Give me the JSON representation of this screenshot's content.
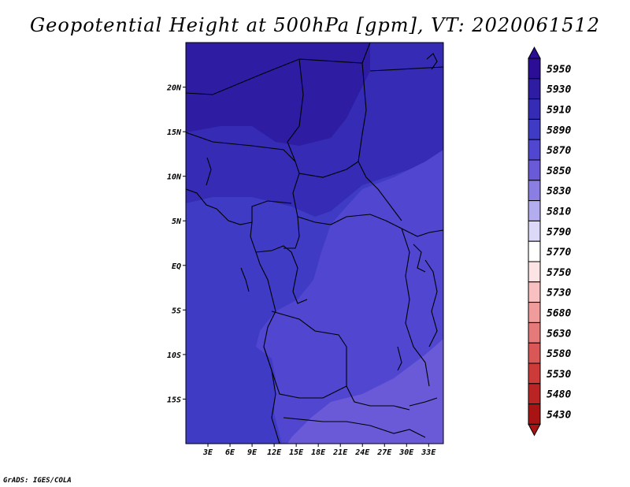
{
  "title": "Geopotential Height at 500hPa [gpm], VT: 2020061512",
  "credit": "GrADS: IGES/COLA",
  "map": {
    "lon_range": [
      0,
      35
    ],
    "lat_range": [
      -20,
      25
    ],
    "x_ticks": [
      "3E",
      "6E",
      "9E",
      "12E",
      "15E",
      "18E",
      "21E",
      "24E",
      "27E",
      "30E",
      "33E"
    ],
    "x_tick_values": [
      3,
      6,
      9,
      12,
      15,
      18,
      21,
      24,
      27,
      30,
      33
    ],
    "y_ticks": [
      "20N",
      "15N",
      "10N",
      "5N",
      "EQ",
      "5S",
      "10S",
      "15S"
    ],
    "y_tick_values": [
      20,
      15,
      10,
      5,
      0,
      -5,
      -10,
      -15
    ]
  },
  "colorbar": {
    "labels": [
      "5950",
      "5930",
      "5910",
      "5890",
      "5870",
      "5850",
      "5830",
      "5810",
      "5790",
      "5770",
      "5750",
      "5730",
      "5680",
      "5630",
      "5580",
      "5530",
      "5480",
      "5430"
    ],
    "colors": [
      "#2b0d96",
      "#2e1ca3",
      "#352bb4",
      "#3f3bc4",
      "#5046cf",
      "#6a5ad8",
      "#8a7ee3",
      "#b3acee",
      "#dcd9f8",
      "#ffffff",
      "#fde4e4",
      "#f8c0c0",
      "#f19c9c",
      "#e57a7a",
      "#d95757",
      "#cc3a3a",
      "#bb2424",
      "#a81414"
    ],
    "top_cap_color": "#2b0d96",
    "bottom_cap_color": "#a81414"
  },
  "field_colors": {
    "c5930": "#2e1ca3",
    "c5910": "#352bb4",
    "c5890": "#3f3bc4",
    "c5870": "#5046cf",
    "c5850": "#6a5ad8"
  }
}
